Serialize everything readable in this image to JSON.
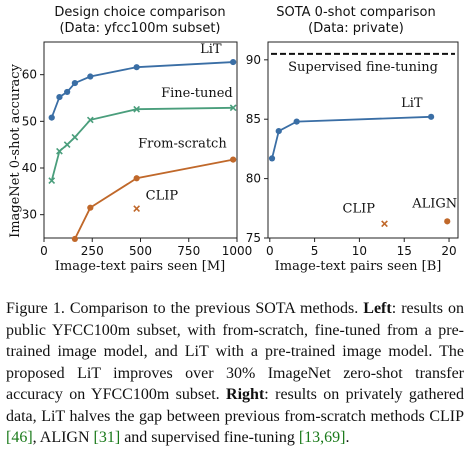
{
  "chart_data": [
    {
      "type": "line",
      "title": "Design choice comparison",
      "subtitle": "(Data: yfcc100m subset)",
      "xlabel": "Image-text pairs seen [M]",
      "ylabel": "ImageNet 0-shot accuracy",
      "xlim": [
        0,
        1000
      ],
      "ylim": [
        25,
        67
      ],
      "xticks": [
        0,
        250,
        500,
        750,
        1000
      ],
      "yticks": [
        30,
        40,
        50,
        60
      ],
      "series": [
        {
          "name": "LiT",
          "color": "#3a6ea5",
          "marker": "dot",
          "x": [
            40,
            80,
            120,
            160,
            240,
            480,
            980
          ],
          "y": [
            50.8,
            55.2,
            56.3,
            58.2,
            59.6,
            61.6,
            62.7
          ]
        },
        {
          "name": "Fine-tuned",
          "color": "#4a9e7c",
          "marker": "x",
          "x": [
            40,
            80,
            120,
            160,
            240,
            480,
            980
          ],
          "y": [
            37.3,
            43.6,
            45.0,
            46.6,
            50.3,
            52.6,
            52.9
          ]
        },
        {
          "name": "From-scratch",
          "color": "#c0682a",
          "marker": "dot",
          "x": [
            160,
            240,
            480,
            980
          ],
          "y": [
            24.8,
            31.5,
            37.8,
            41.8
          ]
        },
        {
          "name": "CLIP",
          "color": "#c0682a",
          "marker": "x",
          "x": [
            480
          ],
          "y": [
            31.3
          ]
        }
      ]
    },
    {
      "type": "line",
      "title": "SOTA 0-shot comparison",
      "subtitle": "(Data: private)",
      "xlabel": "Image-text pairs seen [B]",
      "xlim": [
        -0.2,
        21
      ],
      "ylim": [
        75,
        91.5
      ],
      "xticks": [
        0,
        5,
        10,
        15,
        20
      ],
      "yticks": [
        75,
        80,
        85,
        90
      ],
      "reference_line": {
        "label": "Supervised fine-tuning",
        "y": 90.5
      },
      "series": [
        {
          "name": "LiT",
          "color": "#3a6ea5",
          "marker": "dot",
          "x": [
            0.25,
            1,
            3,
            18
          ],
          "y": [
            81.7,
            84.0,
            84.8,
            85.2
          ]
        },
        {
          "name": "CLIP",
          "color": "#c0682a",
          "marker": "x",
          "x": [
            12.8
          ],
          "y": [
            76.2
          ]
        },
        {
          "name": "ALIGN",
          "color": "#c0682a",
          "marker": "dot",
          "x": [
            19.8
          ],
          "y": [
            76.4
          ]
        }
      ]
    }
  ],
  "caption": {
    "fig": "Figure 1.",
    "p1": " Comparison to the previous SOTA methods. ",
    "left": "Left",
    "p2": ": results on public YFCC100m subset, with from-scratch, fine-tuned from a pre-trained image model, and LiT with a pre-trained image model. The proposed LiT improves over 30% ImageNet zero-shot transfer accuracy on YFCC100m subset. ",
    "right": "Right",
    "p3": ": results on privately gathered data, LiT halves the gap between previous from-scratch methods CLIP ",
    "c1": "[46]",
    "p4": ", ALIGN ",
    "c2": "[31]",
    "p5": " and supervised fine-tuning ",
    "c3": "[13,69]",
    "p6": "."
  }
}
